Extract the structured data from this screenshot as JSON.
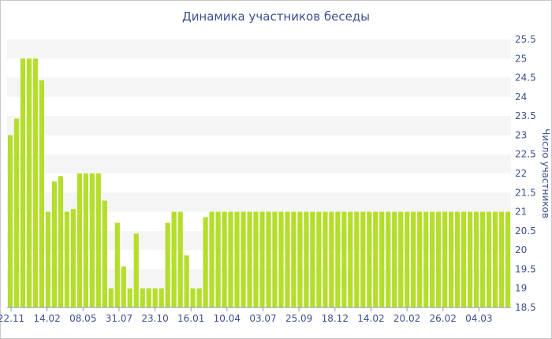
{
  "chart_data": {
    "type": "bar",
    "title": "Динамика участников беседы",
    "xlabel": "",
    "ylabel": "Число участников",
    "ylim": [
      18.5,
      25.5
    ],
    "y_ticks": [
      "18.5",
      "19",
      "19.5",
      "20",
      "20.5",
      "21",
      "21.5",
      "22",
      "22.5",
      "23",
      "23.5",
      "24",
      "24.5",
      "25",
      "25.5"
    ],
    "x_tick_labels": [
      "22.11",
      "14.02",
      "08.05",
      "31.07",
      "23.10",
      "16.01",
      "10.04",
      "03.07",
      "25.09",
      "18.12",
      "14.02",
      "20.02",
      "26.02",
      "04.03"
    ],
    "grid": "horizontal bands",
    "bar_color": "#b5de2a",
    "band_color": "#f5f5f5",
    "values": [
      23,
      23.43,
      25,
      25,
      25,
      24.43,
      21,
      21.79,
      21.93,
      21,
      21.07,
      22,
      22,
      22,
      22,
      21.29,
      19,
      20.71,
      19.57,
      19,
      20.43,
      19,
      19,
      19,
      19,
      20.71,
      21,
      21,
      19.86,
      19,
      19,
      20.86,
      21,
      21,
      21,
      21,
      21,
      21,
      21,
      21,
      21,
      21,
      21,
      21,
      21,
      21,
      21,
      21,
      21,
      21,
      21,
      21,
      21,
      21,
      21,
      21,
      21,
      21,
      21,
      21,
      21,
      21,
      21,
      21,
      21,
      21,
      21,
      21,
      21,
      21,
      21,
      21,
      21,
      21,
      21,
      21,
      21,
      21,
      21,
      21
    ]
  }
}
